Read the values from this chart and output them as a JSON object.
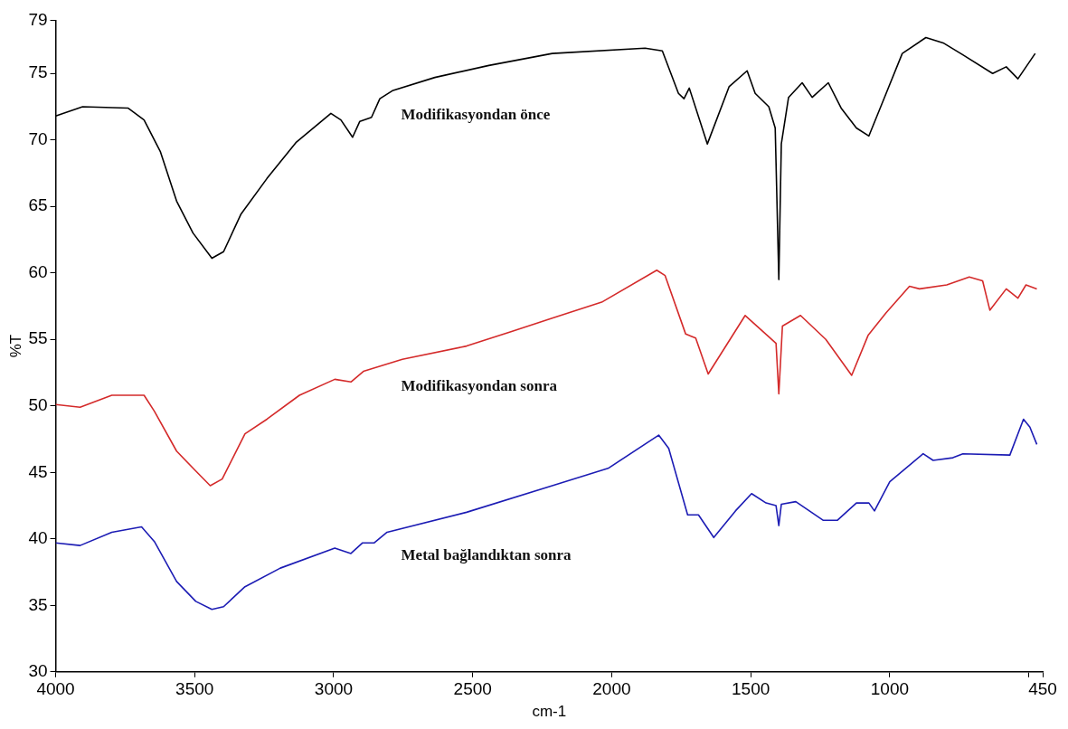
{
  "chart_data": {
    "type": "line",
    "xlabel": "cm-1",
    "ylabel": "%T",
    "xlim": [
      4000,
      450
    ],
    "ylim": [
      30,
      79
    ],
    "xticks": [
      4000,
      3500,
      3000,
      2500,
      2000,
      1500,
      1000,
      {
        "value": 500,
        "label": null
      },
      450
    ],
    "yticks": [
      30,
      35,
      40,
      45,
      50,
      55,
      60,
      65,
      70,
      75,
      79
    ],
    "grid": false,
    "legend": false,
    "marker": "none",
    "line_style": "solid",
    "series": [
      {
        "name": "Modifikasyondan önce",
        "color": "#000000",
        "x": [
          4000,
          3903,
          3740,
          3682,
          3623,
          3565,
          3506,
          3438,
          3396,
          3334,
          3240,
          3136,
          3010,
          2974,
          2932,
          2906,
          2864,
          2834,
          2789,
          2636,
          2442,
          2214,
          1880,
          1818,
          1760,
          1740,
          1721,
          1656,
          1578,
          1513,
          1484,
          1435,
          1412,
          1399,
          1390,
          1364,
          1315,
          1279,
          1221,
          1175,
          1120,
          1075,
          1013,
          955,
          870,
          808,
          737,
          630,
          581,
          539,
          477
        ],
        "values": [
          71.8,
          72.5,
          72.4,
          71.5,
          69.1,
          65.4,
          63.0,
          61.1,
          61.6,
          64.4,
          67.1,
          69.8,
          72.0,
          71.5,
          70.2,
          71.4,
          71.7,
          73.1,
          73.7,
          74.7,
          75.6,
          76.5,
          76.9,
          76.7,
          73.5,
          73.1,
          73.9,
          69.7,
          74.0,
          75.2,
          73.5,
          72.5,
          70.9,
          59.5,
          69.7,
          73.2,
          74.3,
          73.2,
          74.3,
          72.4,
          70.9,
          70.3,
          73.5,
          76.5,
          77.7,
          77.3,
          76.4,
          75.0,
          75.5,
          74.6,
          76.5
        ]
      },
      {
        "name": "Modifikasyondan sonra",
        "color": "#d42a2a",
        "x": [
          4000,
          3912,
          3798,
          3682,
          3645,
          3565,
          3496,
          3444,
          3401,
          3319,
          3240,
          3123,
          2996,
          2938,
          2893,
          2753,
          2522,
          2360,
          2214,
          2036,
          1838,
          1808,
          1734,
          1698,
          1653,
          1520,
          1435,
          1409,
          1399,
          1386,
          1321,
          1230,
          1137,
          1078,
          1013,
          929,
          893,
          795,
          714,
          666,
          640,
          581,
          539,
          510,
          471
        ],
        "values": [
          50.1,
          49.9,
          50.8,
          50.8,
          49.6,
          46.6,
          45.1,
          44.0,
          44.5,
          47.9,
          49.0,
          50.8,
          52.0,
          51.8,
          52.6,
          53.5,
          54.5,
          55.6,
          56.6,
          57.8,
          60.2,
          59.8,
          55.4,
          55.1,
          52.4,
          56.8,
          55.2,
          54.7,
          50.9,
          56.0,
          56.8,
          55.0,
          52.3,
          55.3,
          57.0,
          59.0,
          58.8,
          59.1,
          59.7,
          59.4,
          57.2,
          58.8,
          58.1,
          59.1,
          58.8
        ]
      },
      {
        "name": "Metal bağlandıktan sonra",
        "color": "#1c1cb4",
        "x": [
          4000,
          3912,
          3798,
          3691,
          3645,
          3565,
          3496,
          3438,
          3396,
          3319,
          3192,
          2996,
          2938,
          2896,
          2854,
          2808,
          2522,
          2214,
          2013,
          1831,
          1795,
          1727,
          1688,
          1633,
          1555,
          1497,
          1445,
          1409,
          1399,
          1390,
          1338,
          1240,
          1188,
          1120,
          1075,
          1055,
          1000,
          880,
          844,
          773,
          737,
          568,
          519,
          496,
          471
        ],
        "values": [
          39.7,
          39.5,
          40.5,
          40.9,
          39.8,
          36.8,
          35.3,
          34.7,
          34.9,
          36.4,
          37.8,
          39.3,
          38.9,
          39.7,
          39.7,
          40.5,
          42.0,
          44.0,
          45.3,
          47.8,
          46.8,
          41.8,
          41.8,
          40.1,
          42.1,
          43.4,
          42.7,
          42.5,
          41.0,
          42.6,
          42.8,
          41.4,
          41.4,
          42.7,
          42.7,
          42.1,
          44.3,
          46.4,
          45.9,
          46.1,
          46.4,
          46.3,
          49.0,
          48.4,
          47.1
        ]
      }
    ]
  }
}
